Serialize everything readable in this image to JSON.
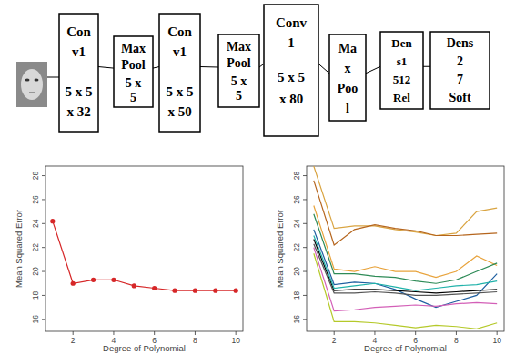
{
  "diagram": {
    "nodes": [
      {
        "lines": [
          "Con",
          "v1",
          "5 x 5",
          "x 32"
        ]
      },
      {
        "lines": [
          "Max",
          "Pool",
          "5 x",
          "5"
        ]
      },
      {
        "lines": [
          "Con",
          "v1",
          "5 x 5",
          "x 50"
        ]
      },
      {
        "lines": [
          "Max",
          "Pool",
          "5 x",
          "5"
        ]
      },
      {
        "lines": [
          "Conv",
          "1",
          "5 x 5",
          "x 80"
        ]
      },
      {
        "lines": [
          "Ma",
          "x",
          "Poo",
          "l"
        ]
      },
      {
        "lines": [
          "Den",
          "s1",
          "512",
          "Rel"
        ]
      },
      {
        "lines": [
          "Dens",
          "2",
          "7",
          "Soft"
        ]
      }
    ]
  },
  "chart_data": [
    {
      "type": "line",
      "x": [
        1,
        2,
        3,
        4,
        5,
        6,
        7,
        8,
        9,
        10
      ],
      "values": [
        24.2,
        19.0,
        19.3,
        19.3,
        18.8,
        18.6,
        18.4,
        18.4,
        18.4,
        18.4
      ],
      "color": "#d62728",
      "marker": "circle",
      "x_label": "Degree of Polynomial",
      "y_label": "Mean Squared Error",
      "xlim": [
        0.65,
        10.35
      ],
      "ylim": [
        15,
        28.8
      ],
      "xticks": [
        2,
        4,
        6,
        8,
        10
      ],
      "yticks": [
        16,
        18,
        20,
        22,
        24,
        26,
        28
      ]
    },
    {
      "type": "line",
      "x": [
        1,
        2,
        3,
        4,
        5,
        6,
        7,
        8,
        9,
        10
      ],
      "series": [
        {
          "color": "#d9a441",
          "values": [
            28.8,
            23.6,
            23.8,
            23.8,
            23.5,
            23.3,
            23.0,
            23.2,
            25.0,
            25.3
          ]
        },
        {
          "color": "#b5651d",
          "values": [
            27.6,
            22.2,
            23.5,
            23.9,
            23.6,
            23.4,
            23.0,
            23.0,
            23.1,
            23.2
          ]
        },
        {
          "color": "#e8a33c",
          "values": [
            25.5,
            20.2,
            20.0,
            20.4,
            20.0,
            20.0,
            19.5,
            20.0,
            21.3,
            20.5
          ]
        },
        {
          "color": "#2e8b57",
          "values": [
            24.8,
            19.8,
            19.8,
            19.6,
            19.5,
            19.2,
            19.0,
            19.3,
            20.0,
            20.7
          ]
        },
        {
          "color": "#1f5fa0",
          "values": [
            23.5,
            18.9,
            19.1,
            19.0,
            18.5,
            17.7,
            17.0,
            17.5,
            18.0,
            19.8
          ]
        },
        {
          "color": "#000000",
          "values": [
            22.7,
            18.4,
            18.5,
            18.5,
            18.4,
            18.3,
            18.2,
            18.3,
            18.4,
            18.5
          ]
        },
        {
          "color": "#555555",
          "values": [
            22.3,
            18.2,
            18.2,
            18.3,
            18.2,
            18.0,
            18.0,
            18.1,
            18.2,
            18.3
          ]
        },
        {
          "color": "#d35fb7",
          "values": [
            22.0,
            16.7,
            16.8,
            17.0,
            17.1,
            17.2,
            17.1,
            17.3,
            17.4,
            17.3
          ]
        },
        {
          "color": "#b5c92a",
          "values": [
            21.5,
            15.8,
            15.8,
            15.7,
            15.5,
            15.3,
            15.5,
            15.4,
            15.2,
            15.7
          ]
        },
        {
          "color": "#20b2aa",
          "values": [
            23.0,
            18.6,
            18.8,
            19.0,
            18.7,
            18.4,
            18.6,
            18.8,
            18.9,
            19.2
          ]
        }
      ],
      "x_label": "Degree of Polynomial",
      "y_label": "Mean Squared Error",
      "xlim": [
        0.65,
        10.35
      ],
      "ylim": [
        15,
        28.8
      ],
      "xticks": [
        2,
        4,
        6,
        8,
        10
      ],
      "yticks": [
        16,
        18,
        20,
        22,
        24,
        26,
        28
      ]
    }
  ]
}
